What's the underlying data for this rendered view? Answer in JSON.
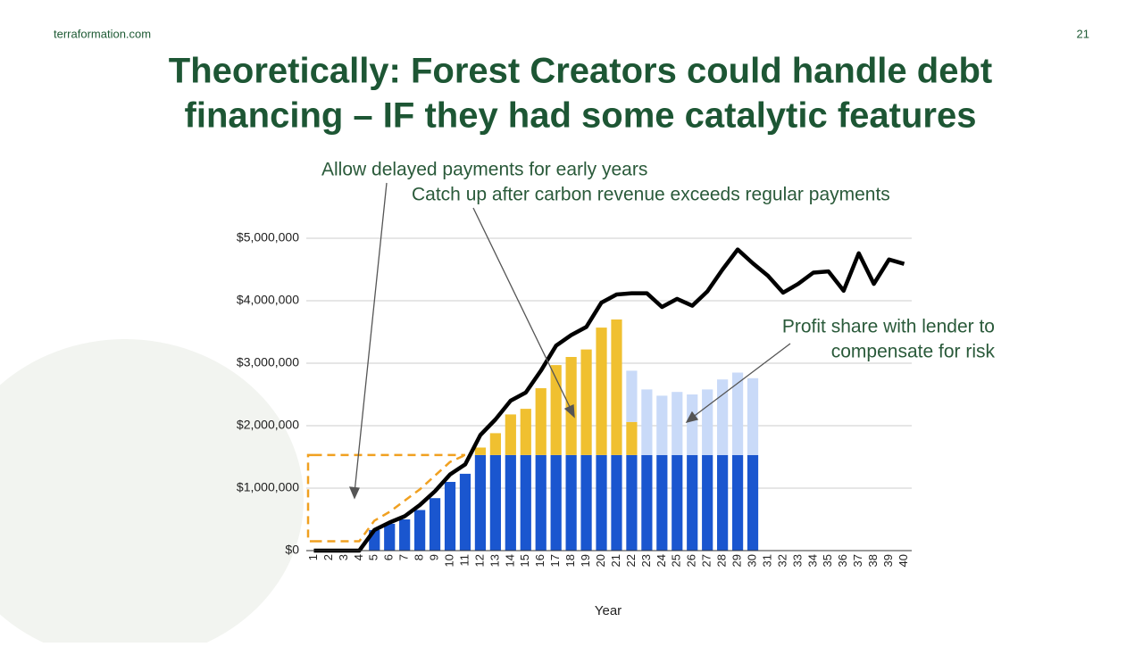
{
  "page": {
    "site": "terraformation.com",
    "number": "21",
    "title_lines": [
      "Theoretically: Forest Creators could handle debt",
      "financing – IF they had some catalytic features"
    ]
  },
  "chart_data": {
    "type": "bar",
    "annotations": [
      "Allow delayed payments for early years",
      "Catch up after carbon revenue exceeds regular payments",
      "Profit share with lender to",
      "compensate for risk"
    ],
    "x_label": "Year",
    "categories": [
      "1",
      "2",
      "3",
      "4",
      "5",
      "6",
      "7",
      "8",
      "9",
      "10",
      "11",
      "12",
      "13",
      "14",
      "15",
      "16",
      "17",
      "18",
      "19",
      "20",
      "21",
      "22",
      "23",
      "24",
      "25",
      "26",
      "27",
      "28",
      "29",
      "30",
      "31",
      "32",
      "33",
      "34",
      "35",
      "36",
      "37",
      "38",
      "39",
      "40"
    ],
    "ylim": [
      0,
      5000000
    ],
    "yticks": [
      {
        "value": 0,
        "label": "$0"
      },
      {
        "value": 1000000,
        "label": "$1,000,000"
      },
      {
        "value": 2000000,
        "label": "$2,000,000"
      },
      {
        "value": 3000000,
        "label": "$3,000,000"
      },
      {
        "value": 4000000,
        "label": "$4,000,000"
      },
      {
        "value": 5000000,
        "label": "$5,000,000"
      }
    ],
    "grid": true,
    "series": [
      {
        "type": "bar",
        "color": "#1a56cf",
        "values": [
          0,
          0,
          0,
          0,
          330000,
          430000,
          500000,
          650000,
          840000,
          1100000,
          1230000,
          1530000,
          1530000,
          1530000,
          1530000,
          1530000,
          1530000,
          1530000,
          1530000,
          1530000,
          1530000,
          1530000,
          1530000,
          1530000,
          1530000,
          1530000,
          1530000,
          1530000,
          1530000,
          1530000,
          0,
          0,
          0,
          0,
          0,
          0,
          0,
          0,
          0,
          0
        ]
      },
      {
        "type": "bar",
        "color": "#f0c030",
        "values": [
          0,
          0,
          0,
          0,
          0,
          0,
          0,
          0,
          0,
          0,
          0,
          120000,
          350000,
          650000,
          740000,
          1070000,
          1440000,
          1570000,
          1690000,
          2040000,
          2170000,
          530000,
          0,
          0,
          0,
          0,
          0,
          0,
          0,
          0,
          0,
          0,
          0,
          0,
          0,
          0,
          0,
          0,
          0,
          0
        ]
      },
      {
        "type": "bar",
        "color": "#c9daf8",
        "values": [
          0,
          0,
          0,
          0,
          0,
          0,
          0,
          0,
          0,
          0,
          0,
          0,
          0,
          0,
          0,
          0,
          0,
          0,
          0,
          0,
          0,
          820000,
          1050000,
          950000,
          1010000,
          970000,
          1050000,
          1210000,
          1320000,
          1230000,
          0,
          0,
          0,
          0,
          0,
          0,
          0,
          0,
          0,
          0
        ]
      },
      {
        "type": "line",
        "color": "#000000",
        "values": [
          0,
          0,
          0,
          0,
          330000,
          450000,
          550000,
          730000,
          950000,
          1220000,
          1380000,
          1850000,
          2100000,
          2400000,
          2530000,
          2880000,
          3280000,
          3450000,
          3580000,
          3970000,
          4100000,
          4120000,
          4120000,
          3900000,
          4030000,
          3920000,
          4150000,
          4500000,
          4820000,
          4600000,
          4400000,
          4130000,
          4270000,
          4450000,
          4470000,
          4160000,
          4760000,
          4270000,
          4660000,
          4590000
        ]
      },
      {
        "type": "dashed",
        "color": "#f0a020",
        "values": [
          1530000,
          1530000,
          1530000,
          1530000,
          1530000,
          1530000,
          1530000,
          1530000,
          1530000,
          1530000,
          1530000,
          null,
          null,
          null,
          null,
          null,
          null,
          null,
          null,
          null,
          null,
          null,
          null,
          null,
          null,
          null,
          null,
          null,
          null,
          null,
          null,
          null,
          null,
          null,
          null,
          null,
          null,
          null,
          null,
          null
        ]
      },
      {
        "type": "dashed",
        "color": "#f0a020",
        "values": [
          150000,
          150000,
          150000,
          150000,
          480000,
          620000,
          800000,
          980000,
          1200000,
          1420000,
          1530000,
          null,
          null,
          null,
          null,
          null,
          null,
          null,
          null,
          null,
          null,
          null,
          null,
          null,
          null,
          null,
          null,
          null,
          null,
          null,
          null,
          null,
          null,
          null,
          null,
          null,
          null,
          null,
          null,
          null
        ]
      }
    ]
  }
}
